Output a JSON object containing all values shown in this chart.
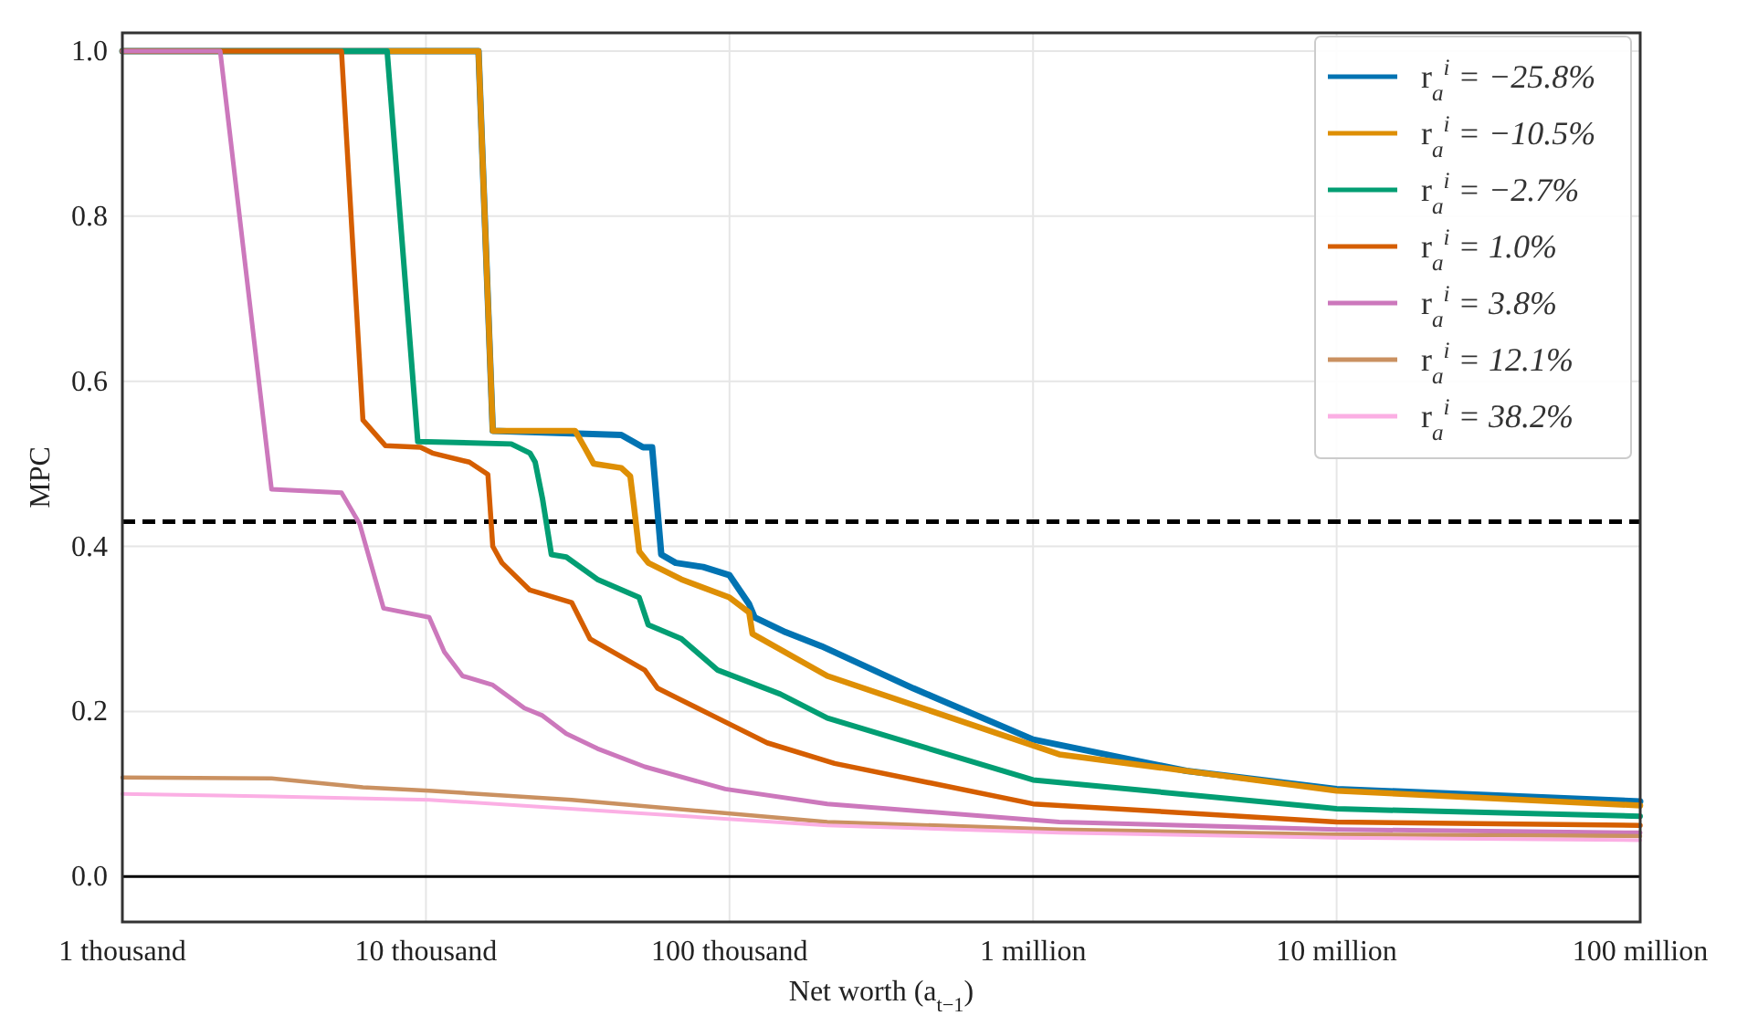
{
  "chart_data": {
    "type": "line",
    "xlabel": "Net worth (a$_{t−1}$)",
    "ylabel": "MPC",
    "log": "x",
    "xlim": [
      1000,
      100000000
    ],
    "xticks": [
      {
        "value": 1000,
        "label": "1 thousand"
      },
      {
        "value": 10000,
        "label": "10 thousand"
      },
      {
        "value": 100000,
        "label": "100 thousand"
      },
      {
        "value": 1000000,
        "label": "1 million"
      },
      {
        "value": 10000000,
        "label": "10 million"
      },
      {
        "value": 100000000,
        "label": "100 million"
      }
    ],
    "ylim": [
      -0.055,
      1.022
    ],
    "yticks": [
      {
        "value": 0,
        "label": "0.0"
      },
      {
        "value": 0.2,
        "label": "0.2"
      },
      {
        "value": 0.4,
        "label": "0.4"
      },
      {
        "value": 0.6,
        "label": "0.6"
      },
      {
        "value": 0.8,
        "label": "0.8"
      },
      {
        "value": 1,
        "label": "1.0"
      }
    ],
    "grid": true,
    "legend": "top right",
    "line_style": "solid",
    "marker": "none",
    "ref_lines": [
      {
        "axis": "y",
        "value": 0.43,
        "line_style": "dashed",
        "color": "#000000"
      },
      {
        "axis": "y",
        "value": 0,
        "line_style": "solid",
        "color": "#000000"
      }
    ],
    "series": [
      {
        "name": "r$_{a}$$^{i}$ = −25.8%",
        "color": "#0173b2",
        "x": [
          1000,
          14900,
          16600,
          44000,
          51900,
          55600,
          59600,
          66500,
          81900,
          100000,
          116000,
          121000,
          153000,
          201000,
          403000,
          1000000,
          3200000,
          10000000,
          100000000
        ],
        "values": [
          1,
          1,
          0.54,
          0.535,
          0.52,
          0.52,
          0.39,
          0.38,
          0.375,
          0.365,
          0.33,
          0.314,
          0.296,
          0.279,
          0.228,
          0.166,
          0.128,
          0.106,
          0.091
        ]
      },
      {
        "name": "r$_{a}$$^{i}$ = −10.5%",
        "color": "#de8f05",
        "x": [
          1000,
          14900,
          16600,
          31000,
          33300,
          35700,
          44000,
          47100,
          48400,
          50400,
          54000,
          69400,
          100000,
          116000,
          119000,
          210000,
          1220000,
          10000000,
          100000000
        ],
        "values": [
          1,
          1,
          0.54,
          0.54,
          0.52,
          0.5,
          0.495,
          0.485,
          0.45,
          0.394,
          0.38,
          0.36,
          0.338,
          0.32,
          0.294,
          0.243,
          0.148,
          0.104,
          0.086
        ]
      },
      {
        "name": "r$_{a}$$^{i}$ = −2.7%",
        "color": "#029e73",
        "x": [
          1000,
          7450,
          9400,
          19100,
          22000,
          22900,
          24200,
          25900,
          29000,
          36700,
          50400,
          54000,
          69400,
          91500,
          147000,
          210000,
          1000000,
          10000000,
          100000000
        ],
        "values": [
          1,
          1,
          0.527,
          0.524,
          0.513,
          0.502,
          0.458,
          0.39,
          0.387,
          0.36,
          0.338,
          0.305,
          0.288,
          0.25,
          0.221,
          0.192,
          0.117,
          0.082,
          0.073
        ]
      },
      {
        "name": "r$_{a}$$^{i}$ = 1.0%",
        "color": "#d55e00",
        "x": [
          1000,
          5270,
          6200,
          7350,
          9600,
          10500,
          13900,
          16000,
          16600,
          17800,
          22000,
          30200,
          34700,
          52600,
          58000,
          87800,
          133000,
          222000,
          1000000,
          10000000,
          100000000
        ],
        "values": [
          1,
          1,
          0.553,
          0.522,
          0.52,
          0.513,
          0.502,
          0.487,
          0.4,
          0.38,
          0.347,
          0.332,
          0.288,
          0.25,
          0.228,
          0.195,
          0.162,
          0.137,
          0.088,
          0.066,
          0.062
        ]
      },
      {
        "name": "r$_{a}$$^{i}$ = 3.8%",
        "color": "#cc78bc",
        "x": [
          1000,
          2100,
          3100,
          5270,
          6050,
          7250,
          10250,
          11500,
          13200,
          16600,
          21100,
          24200,
          29000,
          36700,
          52600,
          96800,
          210000,
          1220000,
          10000000,
          100000000
        ],
        "values": [
          1,
          1,
          0.469,
          0.465,
          0.427,
          0.325,
          0.314,
          0.272,
          0.243,
          0.232,
          0.204,
          0.195,
          0.173,
          0.155,
          0.133,
          0.106,
          0.088,
          0.066,
          0.057,
          0.053
        ]
      },
      {
        "name": "r$_{a}$$^{i}$ = 12.1%",
        "color": "#ca9161",
        "x": [
          1000,
          3100,
          6200,
          10250,
          30200,
          210000,
          1220000,
          10000000,
          100000000
        ],
        "values": [
          0.12,
          0.119,
          0.108,
          0.104,
          0.093,
          0.066,
          0.057,
          0.051,
          0.049
        ]
      },
      {
        "name": "r$_{a}$$^{i}$ = 38.2%",
        "color": "#fbafe4",
        "x": [
          1000,
          3100,
          10250,
          210000,
          1220000,
          10000000,
          100000000
        ],
        "values": [
          0.1,
          0.097,
          0.093,
          0.062,
          0.053,
          0.047,
          0.044
        ]
      }
    ]
  }
}
